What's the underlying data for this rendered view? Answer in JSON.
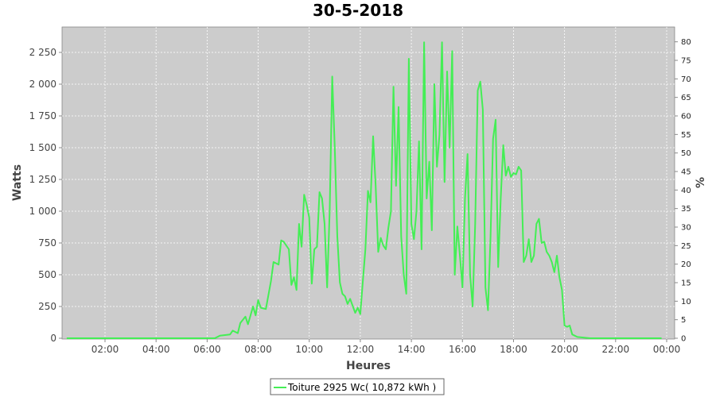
{
  "chart_data": {
    "type": "line",
    "title": "30-5-2018",
    "xlabel": "Heures",
    "ylabel": "Watts",
    "y2label": "%",
    "xlim": [
      0,
      24
    ],
    "ylim": [
      0,
      2450
    ],
    "y2lim": [
      0,
      84
    ],
    "x_ticks": [
      "02:00",
      "04:00",
      "06:00",
      "08:00",
      "10:00",
      "12:00",
      "14:00",
      "16:00",
      "18:00",
      "20:00",
      "22:00",
      "00:00"
    ],
    "y_ticks": [
      "0",
      "250",
      "500",
      "750",
      "1 000",
      "1 250",
      "1 500",
      "1 750",
      "2 000",
      "2 250"
    ],
    "y2_ticks": [
      "0",
      "5",
      "10",
      "15",
      "20",
      "25",
      "30",
      "35",
      "40",
      "45",
      "50",
      "55",
      "60",
      "65",
      "70",
      "75",
      "80"
    ],
    "grid": true,
    "legend_position": "bottom-center",
    "colors": {
      "series": "#44ee55",
      "plot_bg": "#cccccc",
      "grid": "#ffffff"
    },
    "series": [
      {
        "name": "Toiture 2925 Wc( 10,872 kWh )",
        "x": [
          0.5,
          3.0,
          5.5,
          6.3,
          6.5,
          6.9,
          7.0,
          7.2,
          7.3,
          7.5,
          7.6,
          7.8,
          7.9,
          8.0,
          8.1,
          8.3,
          8.5,
          8.6,
          8.8,
          8.9,
          9.0,
          9.2,
          9.3,
          9.4,
          9.5,
          9.6,
          9.7,
          9.8,
          9.9,
          10.0,
          10.1,
          10.2,
          10.3,
          10.4,
          10.5,
          10.6,
          10.7,
          10.8,
          10.9,
          11.0,
          11.1,
          11.2,
          11.3,
          11.4,
          11.5,
          11.6,
          11.8,
          11.9,
          12.0,
          12.1,
          12.2,
          12.3,
          12.4,
          12.5,
          12.6,
          12.7,
          12.8,
          12.9,
          13.0,
          13.1,
          13.2,
          13.3,
          13.4,
          13.5,
          13.6,
          13.7,
          13.8,
          13.9,
          14.0,
          14.1,
          14.2,
          14.3,
          14.4,
          14.5,
          14.6,
          14.7,
          14.8,
          14.9,
          15.0,
          15.1,
          15.2,
          15.3,
          15.4,
          15.5,
          15.6,
          15.7,
          15.8,
          15.9,
          16.0,
          16.1,
          16.2,
          16.3,
          16.4,
          16.5,
          16.6,
          16.7,
          16.8,
          16.9,
          17.0,
          17.1,
          17.2,
          17.3,
          17.4,
          17.5,
          17.6,
          17.7,
          17.8,
          17.9,
          18.0,
          18.1,
          18.2,
          18.3,
          18.4,
          18.5,
          18.6,
          18.7,
          18.8,
          18.9,
          19.0,
          19.1,
          19.2,
          19.3,
          19.4,
          19.5,
          19.6,
          19.7,
          19.8,
          19.9,
          20.0,
          20.1,
          20.2,
          20.3,
          20.5,
          21.0,
          23.8
        ],
        "values": [
          0,
          0,
          0,
          0,
          20,
          30,
          60,
          40,
          120,
          170,
          110,
          250,
          180,
          300,
          240,
          230,
          450,
          600,
          580,
          770,
          760,
          700,
          420,
          480,
          380,
          900,
          720,
          1130,
          1050,
          950,
          430,
          700,
          720,
          1150,
          1100,
          900,
          400,
          1000,
          2060,
          1500,
          800,
          440,
          350,
          330,
          270,
          310,
          200,
          240,
          190,
          450,
          700,
          1160,
          1070,
          1590,
          1200,
          680,
          790,
          730,
          700,
          870,
          1000,
          1980,
          1200,
          1820,
          800,
          500,
          350,
          2200,
          900,
          780,
          1000,
          1550,
          700,
          2330,
          1100,
          1390,
          850,
          2000,
          1350,
          1600,
          2330,
          1230,
          2100,
          1500,
          2260,
          500,
          880,
          650,
          400,
          1100,
          1450,
          500,
          250,
          900,
          1950,
          2020,
          1800,
          400,
          220,
          800,
          1570,
          1720,
          560,
          1100,
          1520,
          1280,
          1350,
          1270,
          1300,
          1290,
          1350,
          1320,
          600,
          650,
          780,
          600,
          650,
          900,
          940,
          750,
          760,
          680,
          650,
          600,
          520,
          650,
          480,
          380,
          100,
          90,
          100,
          30,
          10,
          0,
          0
        ]
      }
    ]
  },
  "legend": {
    "label": "Toiture 2925 Wc( 10,872 kWh )"
  }
}
